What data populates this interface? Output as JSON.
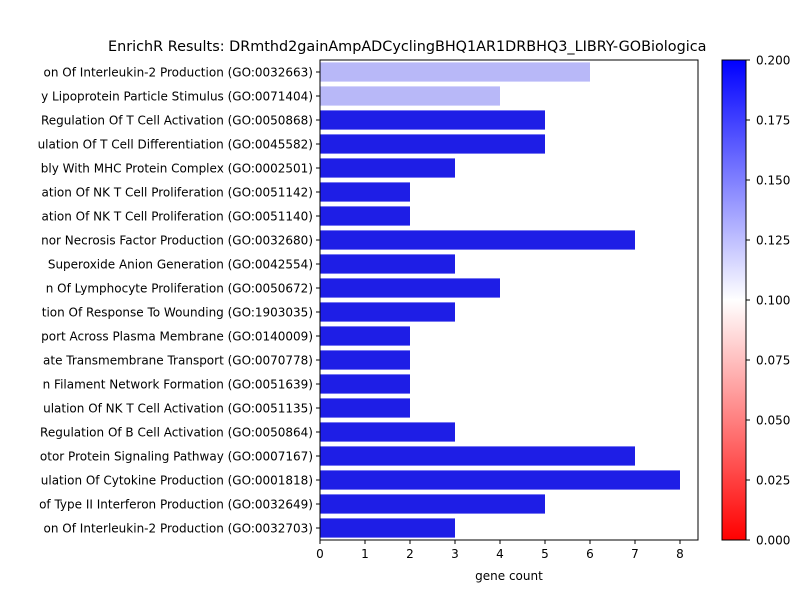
{
  "chart_data": {
    "type": "bar",
    "orientation": "horizontal",
    "title": "EnrichR Results: DRmthd2gainAmpADCyclingBHQ1AR1DRBHQ3_LIBRY-GOBiologica",
    "xlabel": "gene count",
    "ylabel": "",
    "xlim": [
      0,
      8.4
    ],
    "xticks": [
      0,
      1,
      2,
      3,
      4,
      5,
      6,
      7,
      8
    ],
    "categories": [
      "on Of Interleukin-2 Production (GO:0032663)",
      "y Lipoprotein Particle Stimulus (GO:0071404)",
      "Regulation Of T Cell Activation (GO:0050868)",
      "ulation Of T Cell Differentiation (GO:0045582)",
      "bly With MHC Protein Complex (GO:0002501)",
      "ation Of NK T Cell Proliferation (GO:0051142)",
      "ation Of NK T Cell Proliferation (GO:0051140)",
      "nor Necrosis Factor Production (GO:0032680)",
      "Superoxide Anion Generation (GO:0042554)",
      "n Of Lymphocyte Proliferation (GO:0050672)",
      "tion Of Response To Wounding (GO:1903035)",
      "port Across Plasma Membrane (GO:0140009)",
      "ate Transmembrane Transport (GO:0070778)",
      "n Filament Network Formation (GO:0051639)",
      "ulation Of NK T Cell Activation (GO:0051135)",
      "Regulation Of B Cell Activation (GO:0050864)",
      "otor Protein Signaling Pathway (GO:0007167)",
      "ulation Of Cytokine Production (GO:0001818)",
      "of Type II Interferon Production (GO:0032649)",
      "on Of Interleukin-2 Production (GO:0032703)"
    ],
    "values": [
      6,
      4,
      5,
      5,
      3,
      2,
      2,
      7,
      3,
      4,
      3,
      2,
      2,
      2,
      2,
      3,
      7,
      8,
      5,
      3
    ],
    "bar_colors": [
      "#b8b8f8",
      "#b8b8f8",
      "#1e1ee6",
      "#1e1ee6",
      "#1e1ee6",
      "#1e1ee6",
      "#1e1ee6",
      "#1e1ee6",
      "#1e1ee6",
      "#1e1ee6",
      "#1e1ee6",
      "#1e1ee6",
      "#1e1ee6",
      "#1e1ee6",
      "#1e1ee6",
      "#1e1ee6",
      "#1e1ee6",
      "#1e1ee6",
      "#1e1ee6",
      "#1e1ee6"
    ],
    "colorbar": {
      "min": 0.0,
      "max": 0.2,
      "ticks": [
        "0.000",
        "0.025",
        "0.050",
        "0.075",
        "0.100",
        "0.125",
        "0.150",
        "0.175",
        "0.200"
      ],
      "colors": [
        "#ff0000",
        "#ffffff",
        "#0000ff"
      ]
    },
    "grid": false,
    "legend": "none"
  }
}
